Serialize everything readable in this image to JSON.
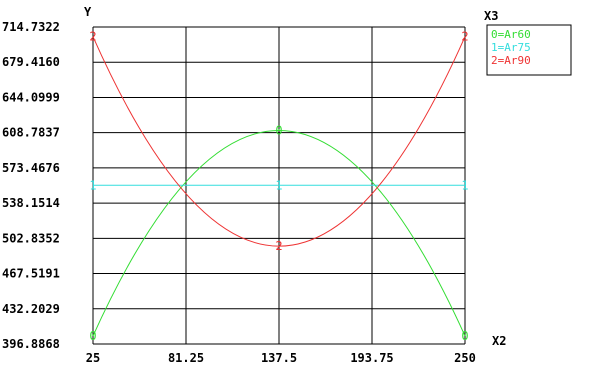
{
  "chart_data": {
    "type": "line",
    "xlabel": "X2",
    "ylabel": "Y",
    "legend_title": "X3",
    "legend_position": "top-right",
    "grid": true,
    "xlim": [
      25,
      250
    ],
    "ylim": [
      396.8868,
      714.7322
    ],
    "x_ticks": [
      "25",
      "81.25",
      "137.5",
      "193.75",
      "250"
    ],
    "x_tick_values": [
      25,
      81.25,
      137.5,
      193.75,
      250
    ],
    "y_ticks": [
      "396.8868",
      "432.2029",
      "467.5191",
      "502.8352",
      "538.1514",
      "573.4676",
      "608.7837",
      "644.0999",
      "679.4160",
      "714.7322"
    ],
    "y_tick_values": [
      396.8868,
      432.2029,
      467.5191,
      502.8352,
      538.1514,
      573.4676,
      608.7837,
      644.0999,
      679.416,
      714.7322
    ],
    "series": [
      {
        "name": "Ar60",
        "marker": "0",
        "legend_label": "0=Ar60",
        "color": "#33dd33",
        "x": [
          25,
          137.5,
          250
        ],
        "y": [
          405,
          611,
          405
        ]
      },
      {
        "name": "Ar75",
        "marker": "1",
        "legend_label": "1=Ar75",
        "color": "#33dddd",
        "x": [
          25,
          137.5,
          250
        ],
        "y": [
          556,
          556,
          556
        ]
      },
      {
        "name": "Ar90",
        "marker": "2",
        "legend_label": "2=Ar90",
        "color": "#ee3333",
        "x": [
          25,
          137.5,
          250
        ],
        "y": [
          705,
          495,
          705
        ]
      }
    ]
  }
}
